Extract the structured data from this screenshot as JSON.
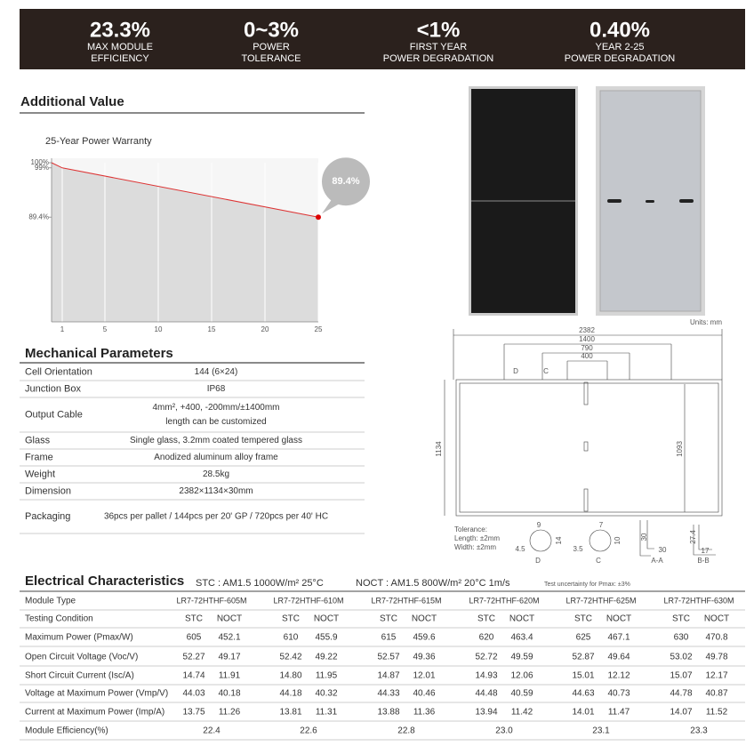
{
  "header": {
    "stats": [
      {
        "value": "23.3%",
        "label": [
          "MAX MODULE",
          "EFFICIENCY"
        ]
      },
      {
        "value": "0~3%",
        "label": [
          "POWER",
          "TOLERANCE"
        ]
      },
      {
        "value": "<1%",
        "label": [
          "FIRST YEAR",
          "POWER DEGRADATION"
        ]
      },
      {
        "value": "0.40%",
        "label": [
          "YEAR 2-25",
          "POWER DEGRADATION"
        ]
      }
    ]
  },
  "warranty": {
    "section_title": "Additional Value",
    "title": "25-Year Power Warranty",
    "x": [
      0,
      1,
      25
    ],
    "values": [
      100,
      99,
      89.4
    ],
    "callout": "89.4%",
    "xlim": [
      0,
      25
    ],
    "ylim": [
      69,
      100
    ],
    "xticks": [
      1,
      5,
      10,
      15,
      20,
      25
    ],
    "yticks": [
      {
        "value": 100,
        "label": "100%"
      },
      {
        "value": 99,
        "label": "99%"
      },
      {
        "value": 89.4,
        "label": "89.4%"
      }
    ]
  },
  "mechanical": {
    "title": "Mechanical Parameters",
    "rows": [
      [
        "Cell Orientation",
        [
          "144 (6×24)"
        ]
      ],
      [
        "Junction Box",
        [
          "IP68"
        ]
      ],
      [
        "Output Cable",
        [
          "4mm², +400, -200mm/±1400mm",
          "length can be customized"
        ]
      ],
      [
        "Glass",
        [
          "Single glass, 3.2mm coated tempered glass"
        ]
      ],
      [
        "Frame",
        [
          "Anodized aluminum alloy frame"
        ]
      ],
      [
        "Weight",
        [
          "28.5kg"
        ]
      ],
      [
        "Dimension",
        [
          "2382×1134×30mm"
        ]
      ],
      [
        "Packaging",
        [
          "36pcs per pallet / 144pcs per 20' GP / 720pcs per 40' HC"
        ]
      ]
    ]
  },
  "drawing": {
    "units": "Units: mm",
    "dims": [
      "2382",
      "1400",
      "790",
      "400",
      "1134",
      "1093"
    ],
    "sections": [
      "D",
      "C"
    ],
    "tolerance": [
      "Tolerance:",
      "Length: ±2mm",
      "Width: ±2mm"
    ],
    "details": [
      "9",
      "14",
      "4.5",
      "D",
      "7",
      "10",
      "3.5",
      "C",
      "30",
      "30",
      "A-A",
      "27.4",
      "17",
      "B-B"
    ]
  },
  "electrical": {
    "title": "Electrical Characteristics",
    "conditions": [
      "STC : AM1.5   1000W/m²   25°C",
      "NOCT : AM1.5   800W/m²   20°C   1m/s"
    ],
    "note": "Test uncertainty for Pmax: ±3%",
    "type_label": "Module Type",
    "models": [
      "LR7-72HTHF-605M",
      "LR7-72HTHF-610M",
      "LR7-72HTHF-615M",
      "LR7-72HTHF-620M",
      "LR7-72HTHF-625M",
      "LR7-72HTHF-630M"
    ],
    "condition_label": "Testing Condition",
    "condition_names": [
      "STC",
      "NOCT"
    ],
    "rows": [
      [
        "Maximum Power (Pmax/W)",
        [
          "605",
          "452.1",
          "610",
          "455.9",
          "615",
          "459.6",
          "620",
          "463.4",
          "625",
          "467.1",
          "630",
          "470.8"
        ]
      ],
      [
        "Open Circuit Voltage (Voc/V)",
        [
          "52.27",
          "49.17",
          "52.42",
          "49.22",
          "52.57",
          "49.36",
          "52.72",
          "49.59",
          "52.87",
          "49.64",
          "53.02",
          "49.78"
        ]
      ],
      [
        "Short Circuit Current (Isc/A)",
        [
          "14.74",
          "11.91",
          "14.80",
          "11.95",
          "14.87",
          "12.01",
          "14.93",
          "12.06",
          "15.01",
          "12.12",
          "15.07",
          "12.17"
        ]
      ],
      [
        "Voltage at Maximum Power (Vmp/V)",
        [
          "44.03",
          "40.18",
          "44.18",
          "40.32",
          "44.33",
          "40.46",
          "44.48",
          "40.59",
          "44.63",
          "40.73",
          "44.78",
          "40.87"
        ]
      ],
      [
        "Current at Maximum Power (Imp/A)",
        [
          "13.75",
          "11.26",
          "13.81",
          "11.31",
          "13.88",
          "11.36",
          "13.94",
          "11.42",
          "14.01",
          "11.47",
          "14.07",
          "11.52"
        ]
      ]
    ],
    "efficiency_label": "Module Efficiency(%)",
    "efficiency": [
      "22.4",
      "22.6",
      "22.8",
      "23.0",
      "23.1",
      "23.3"
    ]
  }
}
